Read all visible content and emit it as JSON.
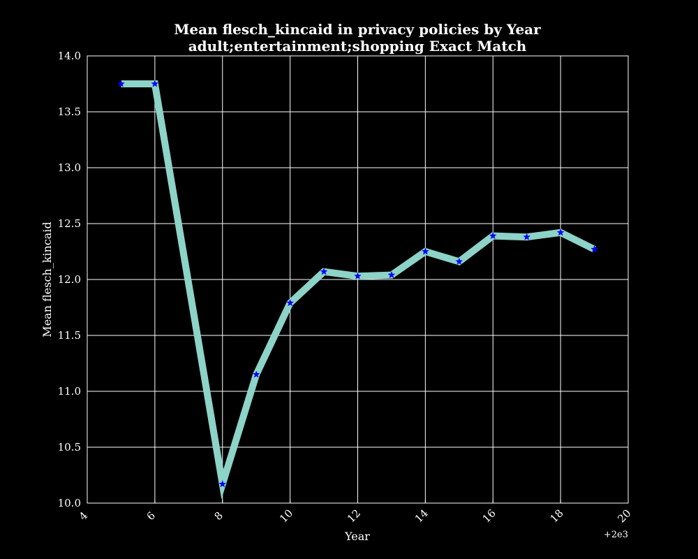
{
  "chart_data": {
    "type": "line",
    "title_line1": "Mean flesch_kincaid in privacy policies by Year",
    "title_line2": "adult;entertainment;shopping Exact Match",
    "xlabel": "Year",
    "ylabel": "Mean flesch_kincaid",
    "x_offset_label": "+2e3",
    "xlim": [
      4,
      20
    ],
    "ylim": [
      10.0,
      14.0
    ],
    "x_ticks": [
      4,
      6,
      8,
      10,
      12,
      14,
      16,
      18,
      20
    ],
    "x_tick_labels": [
      "4",
      "6",
      "8",
      "10",
      "12",
      "14",
      "16",
      "18",
      "20"
    ],
    "y_ticks": [
      10.0,
      10.5,
      11.0,
      11.5,
      12.0,
      12.5,
      13.0,
      13.5,
      14.0
    ],
    "y_tick_labels": [
      "10.0",
      "10.5",
      "11.0",
      "11.5",
      "12.0",
      "12.5",
      "13.0",
      "13.5",
      "14.0"
    ],
    "grid": true,
    "series": [
      {
        "x": [
          5,
          6,
          8,
          9,
          10,
          11,
          12,
          13,
          14,
          15,
          16,
          17,
          18,
          19
        ],
        "y": [
          13.75,
          13.75,
          10.17,
          11.15,
          11.79,
          12.07,
          12.03,
          12.04,
          12.25,
          12.16,
          12.39,
          12.38,
          12.42,
          12.27
        ],
        "line_color": "#8dd3c7",
        "marker_color": "#0000ff",
        "marker": "star"
      }
    ]
  }
}
